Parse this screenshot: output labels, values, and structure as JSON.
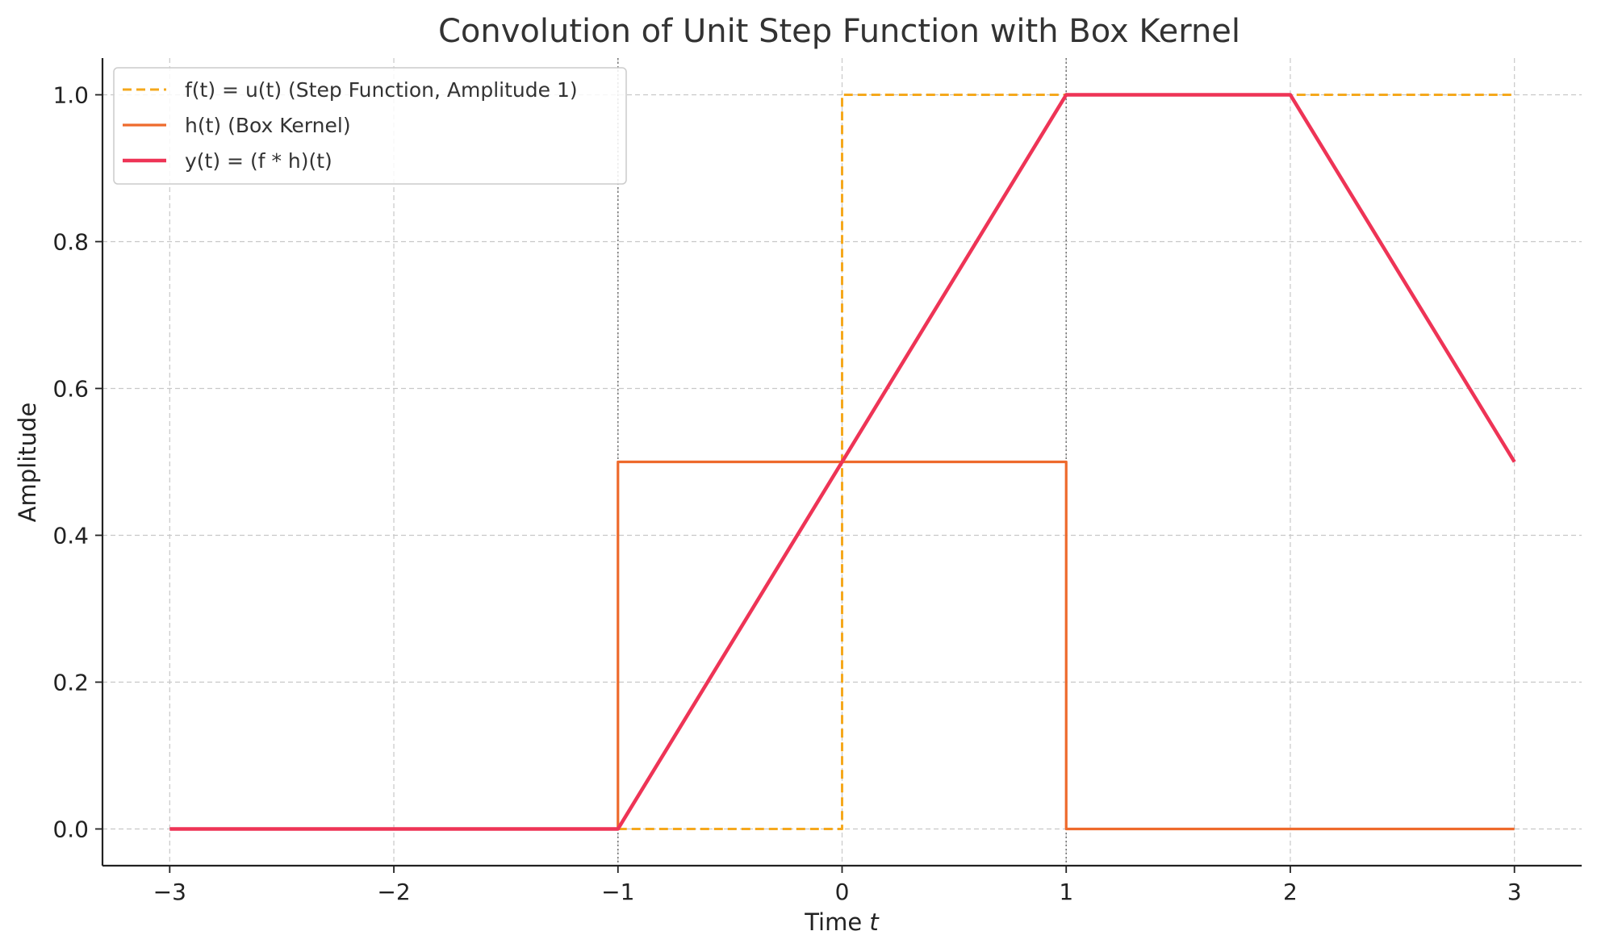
{
  "chart_data": {
    "type": "line",
    "title": "Convolution of Unit Step Function with Box Kernel",
    "xlabel": "Time t",
    "ylabel": "Amplitude",
    "xlim": [
      -3.3,
      3.3
    ],
    "ylim": [
      -0.05,
      1.05
    ],
    "xticks": [
      -3,
      -2,
      -1,
      0,
      1,
      2,
      3
    ],
    "xtick_labels": [
      "−3",
      "−2",
      "−1",
      "0",
      "1",
      "2",
      "3"
    ],
    "yticks": [
      0.0,
      0.2,
      0.4,
      0.6,
      0.8,
      1.0
    ],
    "ytick_labels": [
      "0.0",
      "0.2",
      "0.4",
      "0.6",
      "0.8",
      "1.0"
    ],
    "grid": true,
    "legend_position": "top-left",
    "vertical_markers": [
      -1,
      1
    ],
    "series": [
      {
        "name": "f(t) = u(t) (Step Function, Amplitude 1)",
        "style": "dashed",
        "color": "#f5a81c",
        "x": [
          -1,
          0,
          0,
          3
        ],
        "y": [
          0,
          0,
          1,
          1
        ]
      },
      {
        "name": "h(t) (Box Kernel)",
        "style": "solid",
        "color": "#ee6a2c",
        "x": [
          -1,
          -1,
          1,
          1,
          3
        ],
        "y": [
          0,
          0.5,
          0.5,
          0,
          0
        ]
      },
      {
        "name": "y(t) = (f * h)(t)",
        "style": "solid-thick",
        "color": "#ee3456",
        "x": [
          -3,
          -1,
          1,
          2,
          3
        ],
        "y": [
          0,
          0,
          1,
          1,
          0.5
        ]
      }
    ]
  }
}
